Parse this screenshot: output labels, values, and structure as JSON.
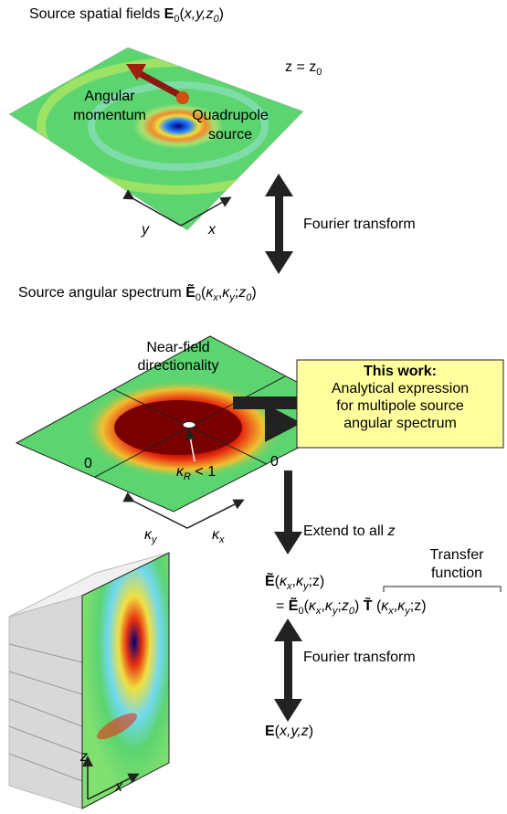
{
  "panel1": {
    "title": [
      "Source spatial fields ",
      "E",
      "0",
      "(",
      "x,y,z",
      "0",
      ")"
    ],
    "plane_label": [
      "z = z",
      "0"
    ],
    "angular_momentum": [
      "Angular",
      "momentum"
    ],
    "quadrupole": [
      "Quadrupole",
      "source"
    ],
    "axis_y": "y",
    "axis_x": "x"
  },
  "fourier_1": "Fourier transform",
  "panel2": {
    "title": [
      "Source angular spectrum ",
      "Ẽ",
      "0",
      "(",
      "κ",
      "x",
      ",",
      "κ",
      "y",
      ";",
      "z",
      "0",
      ")"
    ],
    "directionality": [
      "Near-field",
      "directionality"
    ],
    "kappa_r": [
      "κ",
      "R",
      " < 1"
    ],
    "zero_left": "0",
    "zero_right": "0",
    "axis_ky": [
      "κ",
      "y"
    ],
    "axis_kx": [
      "κ",
      "x"
    ]
  },
  "callout": {
    "heading": "This work:",
    "lines": [
      "Analytical expression",
      "for multipole source",
      "angular spectrum"
    ]
  },
  "extend": [
    "Extend to all ",
    "z"
  ],
  "equation": {
    "lhs": [
      "Ẽ",
      "(",
      "κ",
      "x",
      ",",
      "κ",
      "y",
      ";z)"
    ],
    "transfer": [
      "Transfer",
      "function"
    ],
    "rhs": [
      "= ",
      "Ẽ",
      "0",
      "(",
      "κ",
      "x",
      ",",
      "κ",
      "y",
      ";",
      "z",
      "0",
      ") ",
      "T̃",
      " (",
      "κ",
      "x",
      ",",
      "κ",
      "y",
      ";z)"
    ]
  },
  "fourier_2": "Fourier transform",
  "result": [
    "E",
    "(",
    "x,y,z",
    ")"
  ],
  "panel3": {
    "axis_z": "z",
    "axis_x": "x"
  }
}
